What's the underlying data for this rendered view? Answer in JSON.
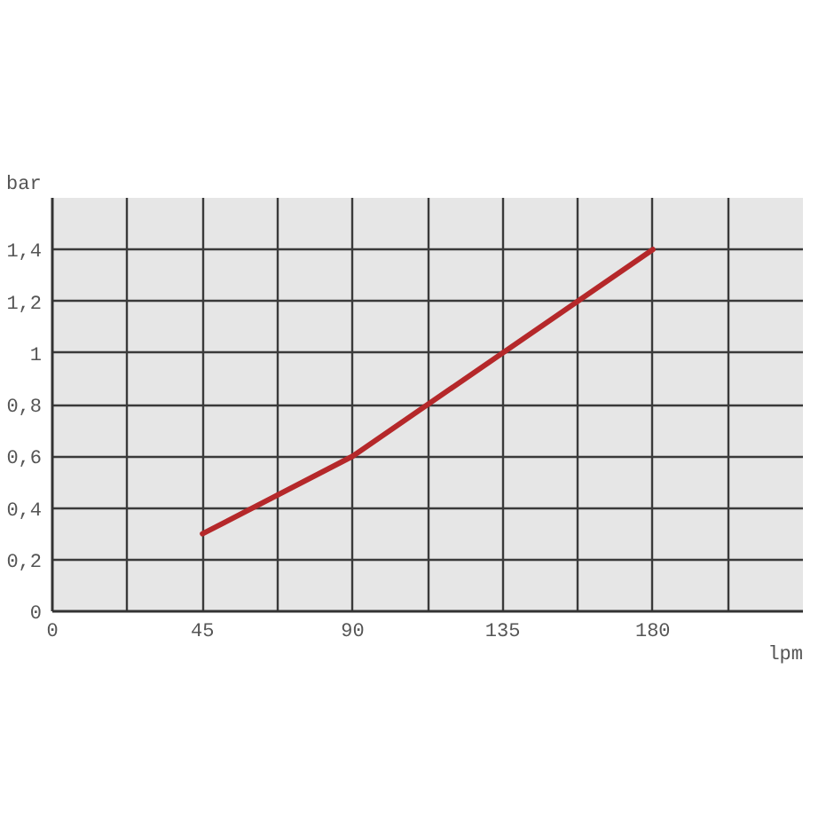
{
  "chart_data": {
    "type": "line",
    "xlabel": "lpm",
    "ylabel": "bar",
    "x": [
      45,
      90,
      180
    ],
    "series": [
      {
        "color": "#b5282a",
        "values": [
          0.3,
          0.6,
          1.4
        ]
      }
    ],
    "xlim": [
      0,
      225
    ],
    "ylim": [
      0,
      1.6
    ],
    "xticks": [
      0,
      {
        "value": 22.5,
        "label": null
      },
      45,
      {
        "value": 67.5,
        "label": null
      },
      90,
      {
        "value": 112.5,
        "label": null
      },
      135,
      {
        "value": 157.5,
        "label": null
      },
      180,
      {
        "value": 202.5,
        "label": null
      }
    ],
    "yticks": [
      0,
      {
        "value": 0.2,
        "label": "0,2"
      },
      {
        "value": 0.4,
        "label": "0,4"
      },
      {
        "value": 0.6,
        "label": "0,6"
      },
      {
        "value": 0.8,
        "label": "0,8"
      },
      1,
      {
        "value": 1.2,
        "label": "1,2"
      },
      {
        "value": 1.4,
        "label": "1,4"
      }
    ],
    "grid": true,
    "line_style": "solid"
  }
}
